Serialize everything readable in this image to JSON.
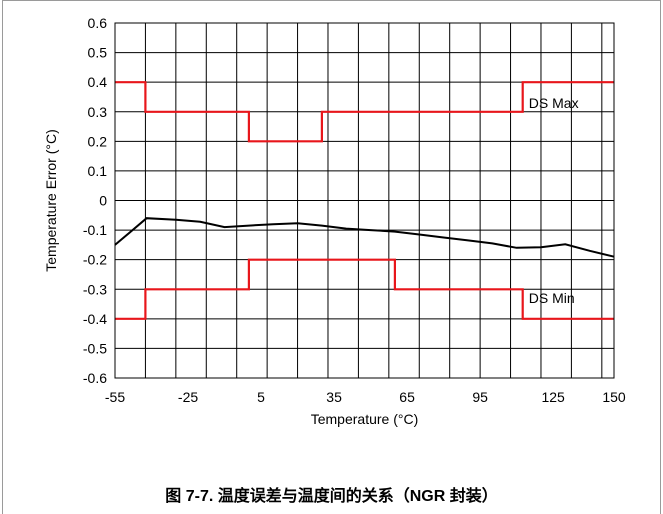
{
  "caption": "图 7-7. 温度误差与温度间的关系（NGR 封装）",
  "chart_data": {
    "type": "line",
    "title": "",
    "xlabel": "Temperature (°C)",
    "ylabel": "Temperature Error (°C)",
    "xlim": [
      -55,
      150
    ],
    "ylim": [
      -0.6,
      0.6
    ],
    "grid": true,
    "x_tick_values": [
      -55,
      -25,
      5,
      35,
      65,
      95,
      125,
      150
    ],
    "x_tick_labels": [
      "-55",
      "-25",
      "5",
      "35",
      "65",
      "95",
      "125",
      "150"
    ],
    "y_tick_values": [
      0.6,
      0.5,
      0.4,
      0.3,
      0.2,
      0.1,
      0,
      -0.1,
      -0.2,
      -0.3,
      -0.4,
      -0.5,
      -0.6
    ],
    "y_tick_labels": [
      "0.6",
      "0.5",
      "0.4",
      "0.3",
      "0.2",
      "0.1",
      "0",
      "-0.1",
      "-0.2",
      "-0.3",
      "-0.4",
      "-0.5",
      "-0.6"
    ],
    "series": [
      {
        "name": "DS Max",
        "color": "#e8161b",
        "style": "step",
        "x": [
          -55,
          -42.5,
          -42.5,
          0,
          0,
          30,
          30,
          60,
          60,
          112.5,
          112.5,
          150
        ],
        "y": [
          0.4,
          0.4,
          0.3,
          0.3,
          0.2,
          0.2,
          0.3,
          0.3,
          0.3,
          0.3,
          0.4,
          0.4
        ]
      },
      {
        "name": "DS Min",
        "color": "#e8161b",
        "style": "step",
        "x": [
          -55,
          -42.5,
          -42.5,
          0,
          0,
          30,
          30,
          60,
          60,
          112.5,
          112.5,
          150
        ],
        "y": [
          -0.4,
          -0.4,
          -0.3,
          -0.3,
          -0.2,
          -0.2,
          -0.2,
          -0.2,
          -0.3,
          -0.3,
          -0.4,
          -0.4
        ]
      },
      {
        "name": "",
        "color": "#000000",
        "style": "line",
        "x": [
          -55,
          -42,
          -30,
          -20,
          -10,
          0,
          10,
          20,
          30,
          40,
          50,
          60,
          70,
          80,
          90,
          100,
          110,
          120,
          130,
          140,
          150
        ],
        "y": [
          -0.15,
          -0.06,
          -0.065,
          -0.072,
          -0.09,
          -0.085,
          -0.08,
          -0.077,
          -0.085,
          -0.095,
          -0.1,
          -0.105,
          -0.115,
          -0.125,
          -0.135,
          -0.145,
          -0.16,
          -0.158,
          -0.148,
          -0.17,
          -0.19
        ]
      }
    ],
    "annotations": [
      {
        "text": "DS Max",
        "x": 115,
        "y": 0.33
      },
      {
        "text": "DS Min",
        "x": 115,
        "y": -0.33
      }
    ]
  }
}
